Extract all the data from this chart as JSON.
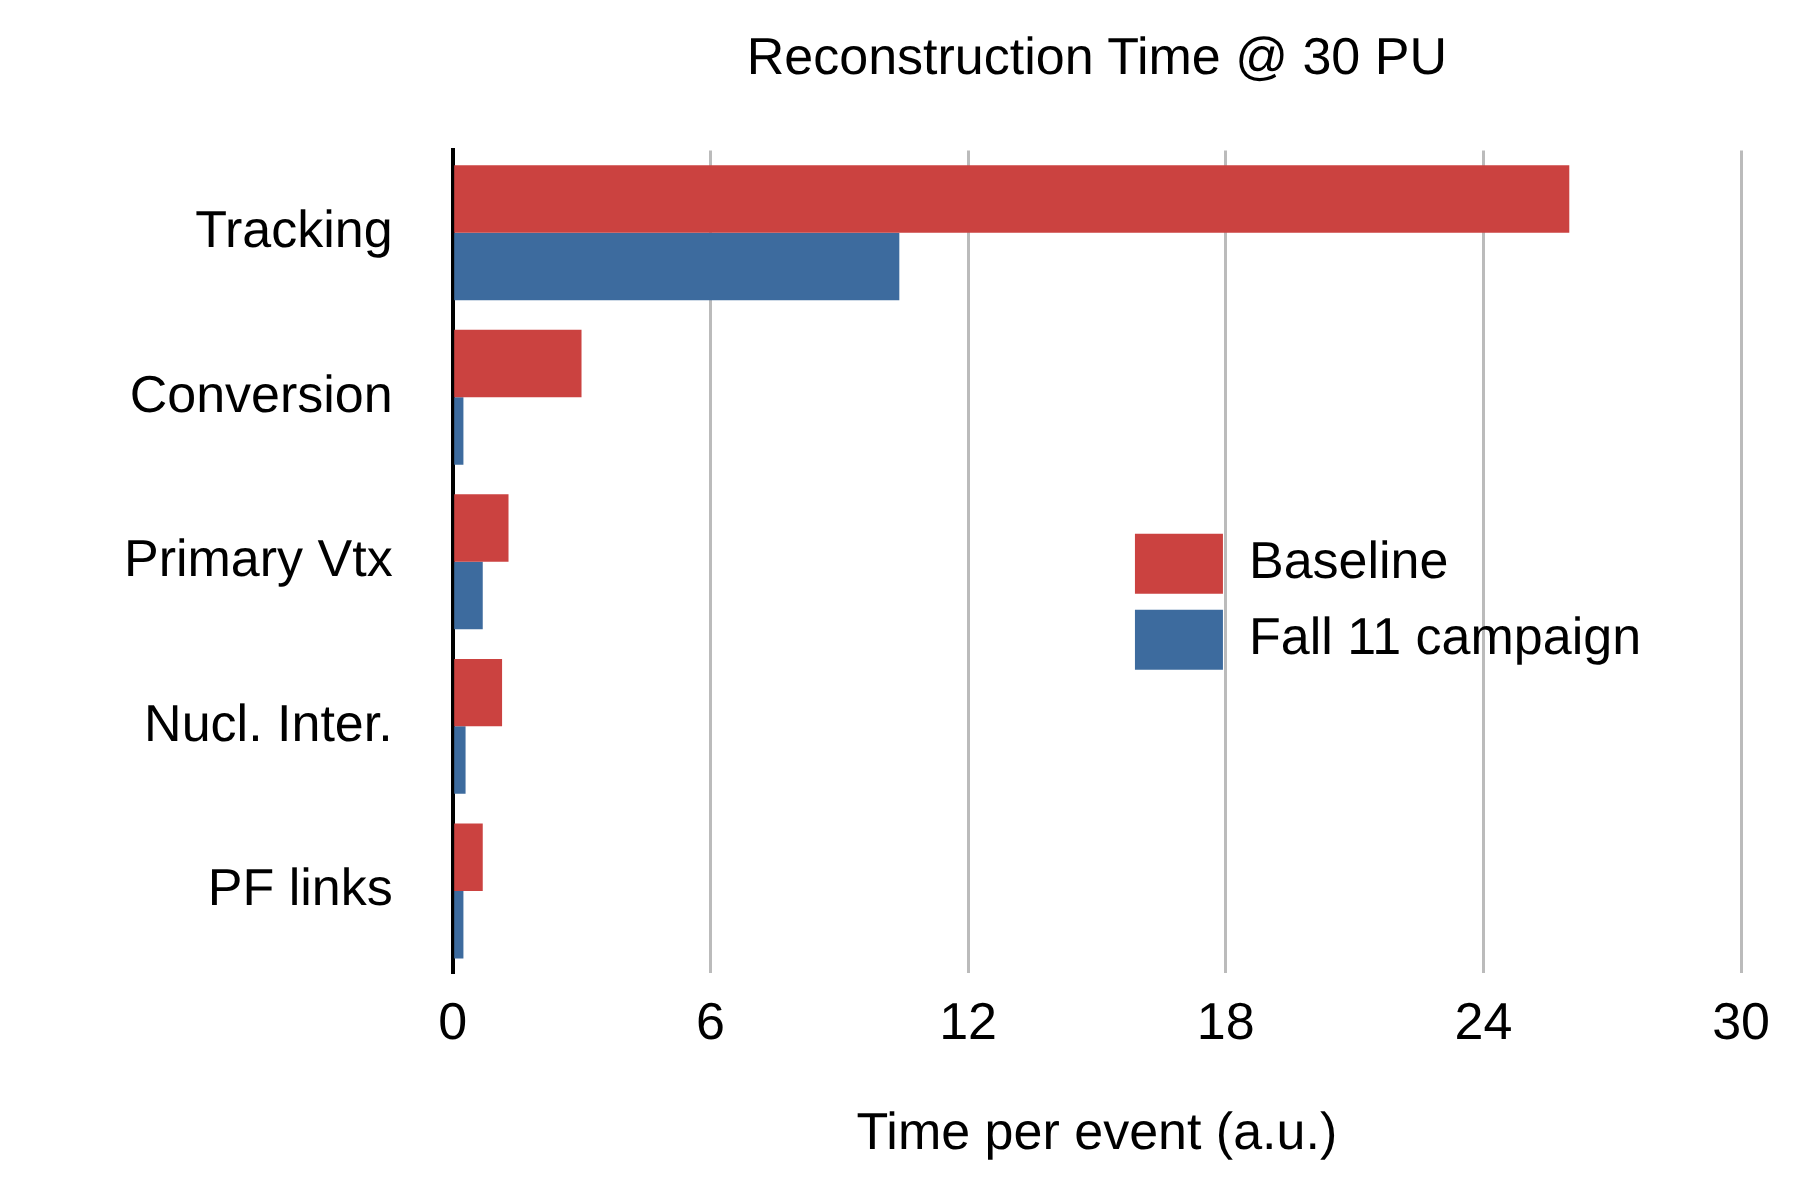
{
  "chart_data": {
    "type": "bar",
    "orientation": "horizontal",
    "title": "Reconstruction Time @ 30 PU",
    "xlabel": "Time per event (a.u.)",
    "categories": [
      "Tracking",
      "Conversion",
      "Primary Vtx",
      "Nucl. Inter.",
      "PF links"
    ],
    "series": [
      {
        "name": "Baseline",
        "color": "#cb4240",
        "values": [
          26,
          3,
          1.3,
          1.15,
          0.7
        ]
      },
      {
        "name": "Fall 11 campaign",
        "color": "#3d6b9e",
        "values": [
          10.4,
          0.25,
          0.7,
          0.3,
          0.25
        ]
      }
    ],
    "xlim": [
      0,
      30
    ],
    "xticks": [
      0,
      6,
      12,
      18,
      24,
      30
    ],
    "grid": "x",
    "legend": "right"
  }
}
